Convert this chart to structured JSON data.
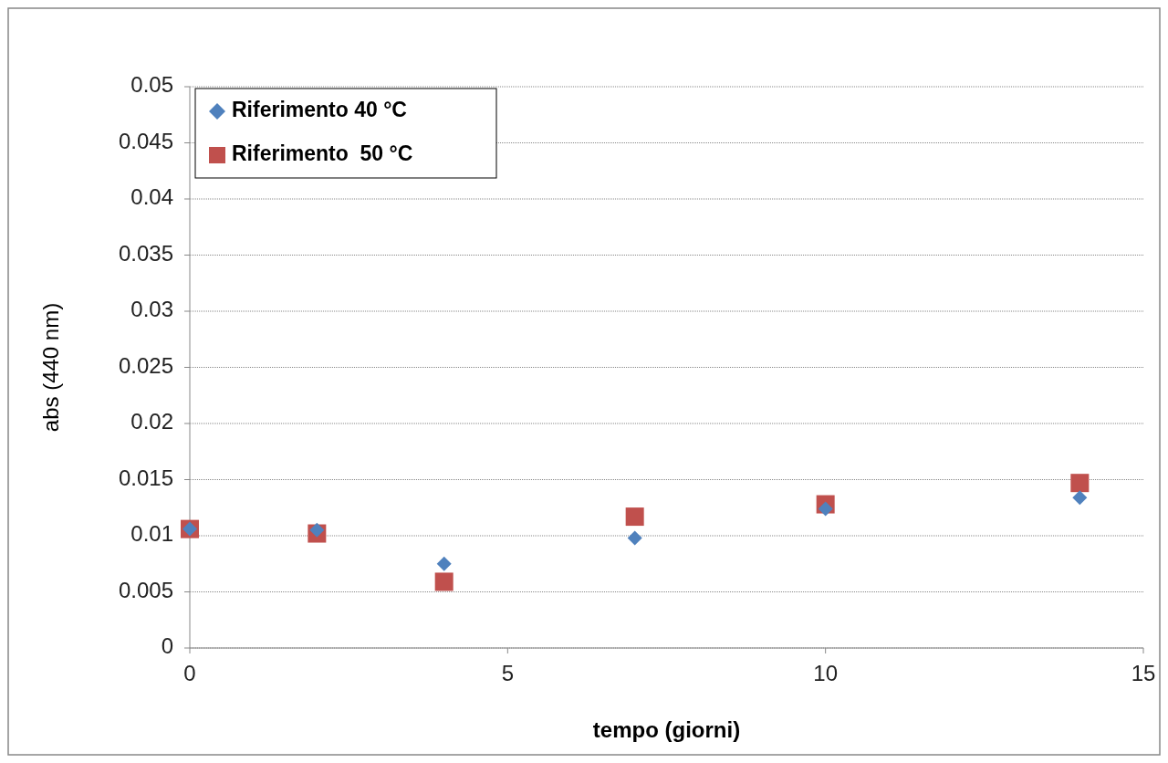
{
  "chart_data": {
    "type": "scatter",
    "xlabel": "tempo (giorni)",
    "ylabel": "abs (440 nm)",
    "x": [
      0,
      2,
      4,
      7,
      10,
      14
    ],
    "series": [
      {
        "name": "Riferimento 40 °C",
        "color": "#4f81bd",
        "marker": "diamond",
        "values": [
          0.0106,
          0.0105,
          0.0075,
          0.0098,
          0.0124,
          0.0134
        ]
      },
      {
        "name": "Riferimento  50 °C",
        "color": "#c0504d",
        "marker": "square",
        "values": [
          0.0106,
          0.0102,
          0.0059,
          0.0117,
          0.0128,
          0.0147
        ]
      }
    ],
    "xlim": [
      0,
      15
    ],
    "xticks": [
      0,
      5,
      10,
      15
    ],
    "ylim": [
      0,
      0.05
    ],
    "yticks": [
      0,
      0.005,
      0.01,
      0.015,
      0.02,
      0.025,
      0.03,
      0.035,
      0.04,
      0.045,
      0.05
    ],
    "grid": "y",
    "legend": "top left"
  }
}
